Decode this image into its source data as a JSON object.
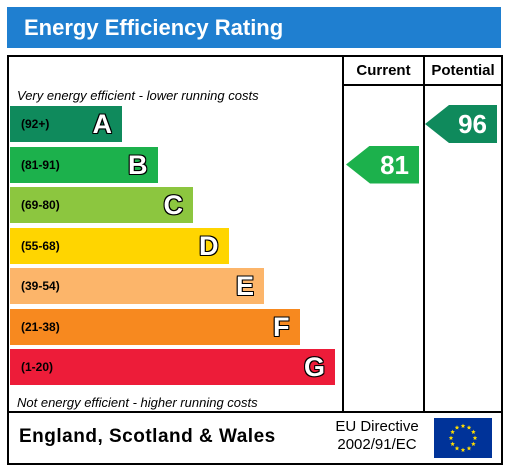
{
  "header": {
    "title": "Energy Efficiency Rating"
  },
  "columns": {
    "current": "Current",
    "potential": "Potential"
  },
  "notes": {
    "top": "Very energy efficient - lower running costs",
    "bottom": "Not energy efficient - higher running costs"
  },
  "footer": {
    "country": "England, Scotland & Wales",
    "directive_line1": "EU Directive",
    "directive_line2": "2002/91/EC",
    "flag_icon": "eu-flag-icon"
  },
  "colors": {
    "title_bar": "#1f7fd0",
    "band_A": "#0f8a5c",
    "band_B": "#1cb14c",
    "band_C": "#8cc63f",
    "band_D": "#ffd500",
    "band_E": "#fcb56a",
    "band_F": "#f7891f",
    "band_G": "#ed1c39",
    "eu_blue": "#003399",
    "eu_star": "#ffdd00"
  },
  "chart_data": {
    "type": "bar",
    "title": "Energy Efficiency Rating",
    "categories": [
      "A",
      "B",
      "C",
      "D",
      "E",
      "F",
      "G"
    ],
    "ranges": [
      "(92+)",
      "(81-91)",
      "(69-80)",
      "(55-68)",
      "(39-54)",
      "(21-38)",
      "(1-20)"
    ],
    "bands": [
      {
        "letter": "A",
        "range": "(92+)",
        "color": "#0f8a5c"
      },
      {
        "letter": "B",
        "range": "(81-91)",
        "color": "#1cb14c"
      },
      {
        "letter": "C",
        "range": "(69-80)",
        "color": "#8cc63f"
      },
      {
        "letter": "D",
        "range": "(55-68)",
        "color": "#ffd500"
      },
      {
        "letter": "E",
        "range": "(39-54)",
        "color": "#fcb56a"
      },
      {
        "letter": "F",
        "range": "(21-38)",
        "color": "#f7891f"
      },
      {
        "letter": "G",
        "range": "(1-20)",
        "color": "#ed1c39"
      }
    ],
    "current": {
      "value": "81",
      "band": "B",
      "color": "#1cb14c"
    },
    "potential": {
      "value": "96",
      "band": "A",
      "color": "#0f8a5c"
    }
  }
}
